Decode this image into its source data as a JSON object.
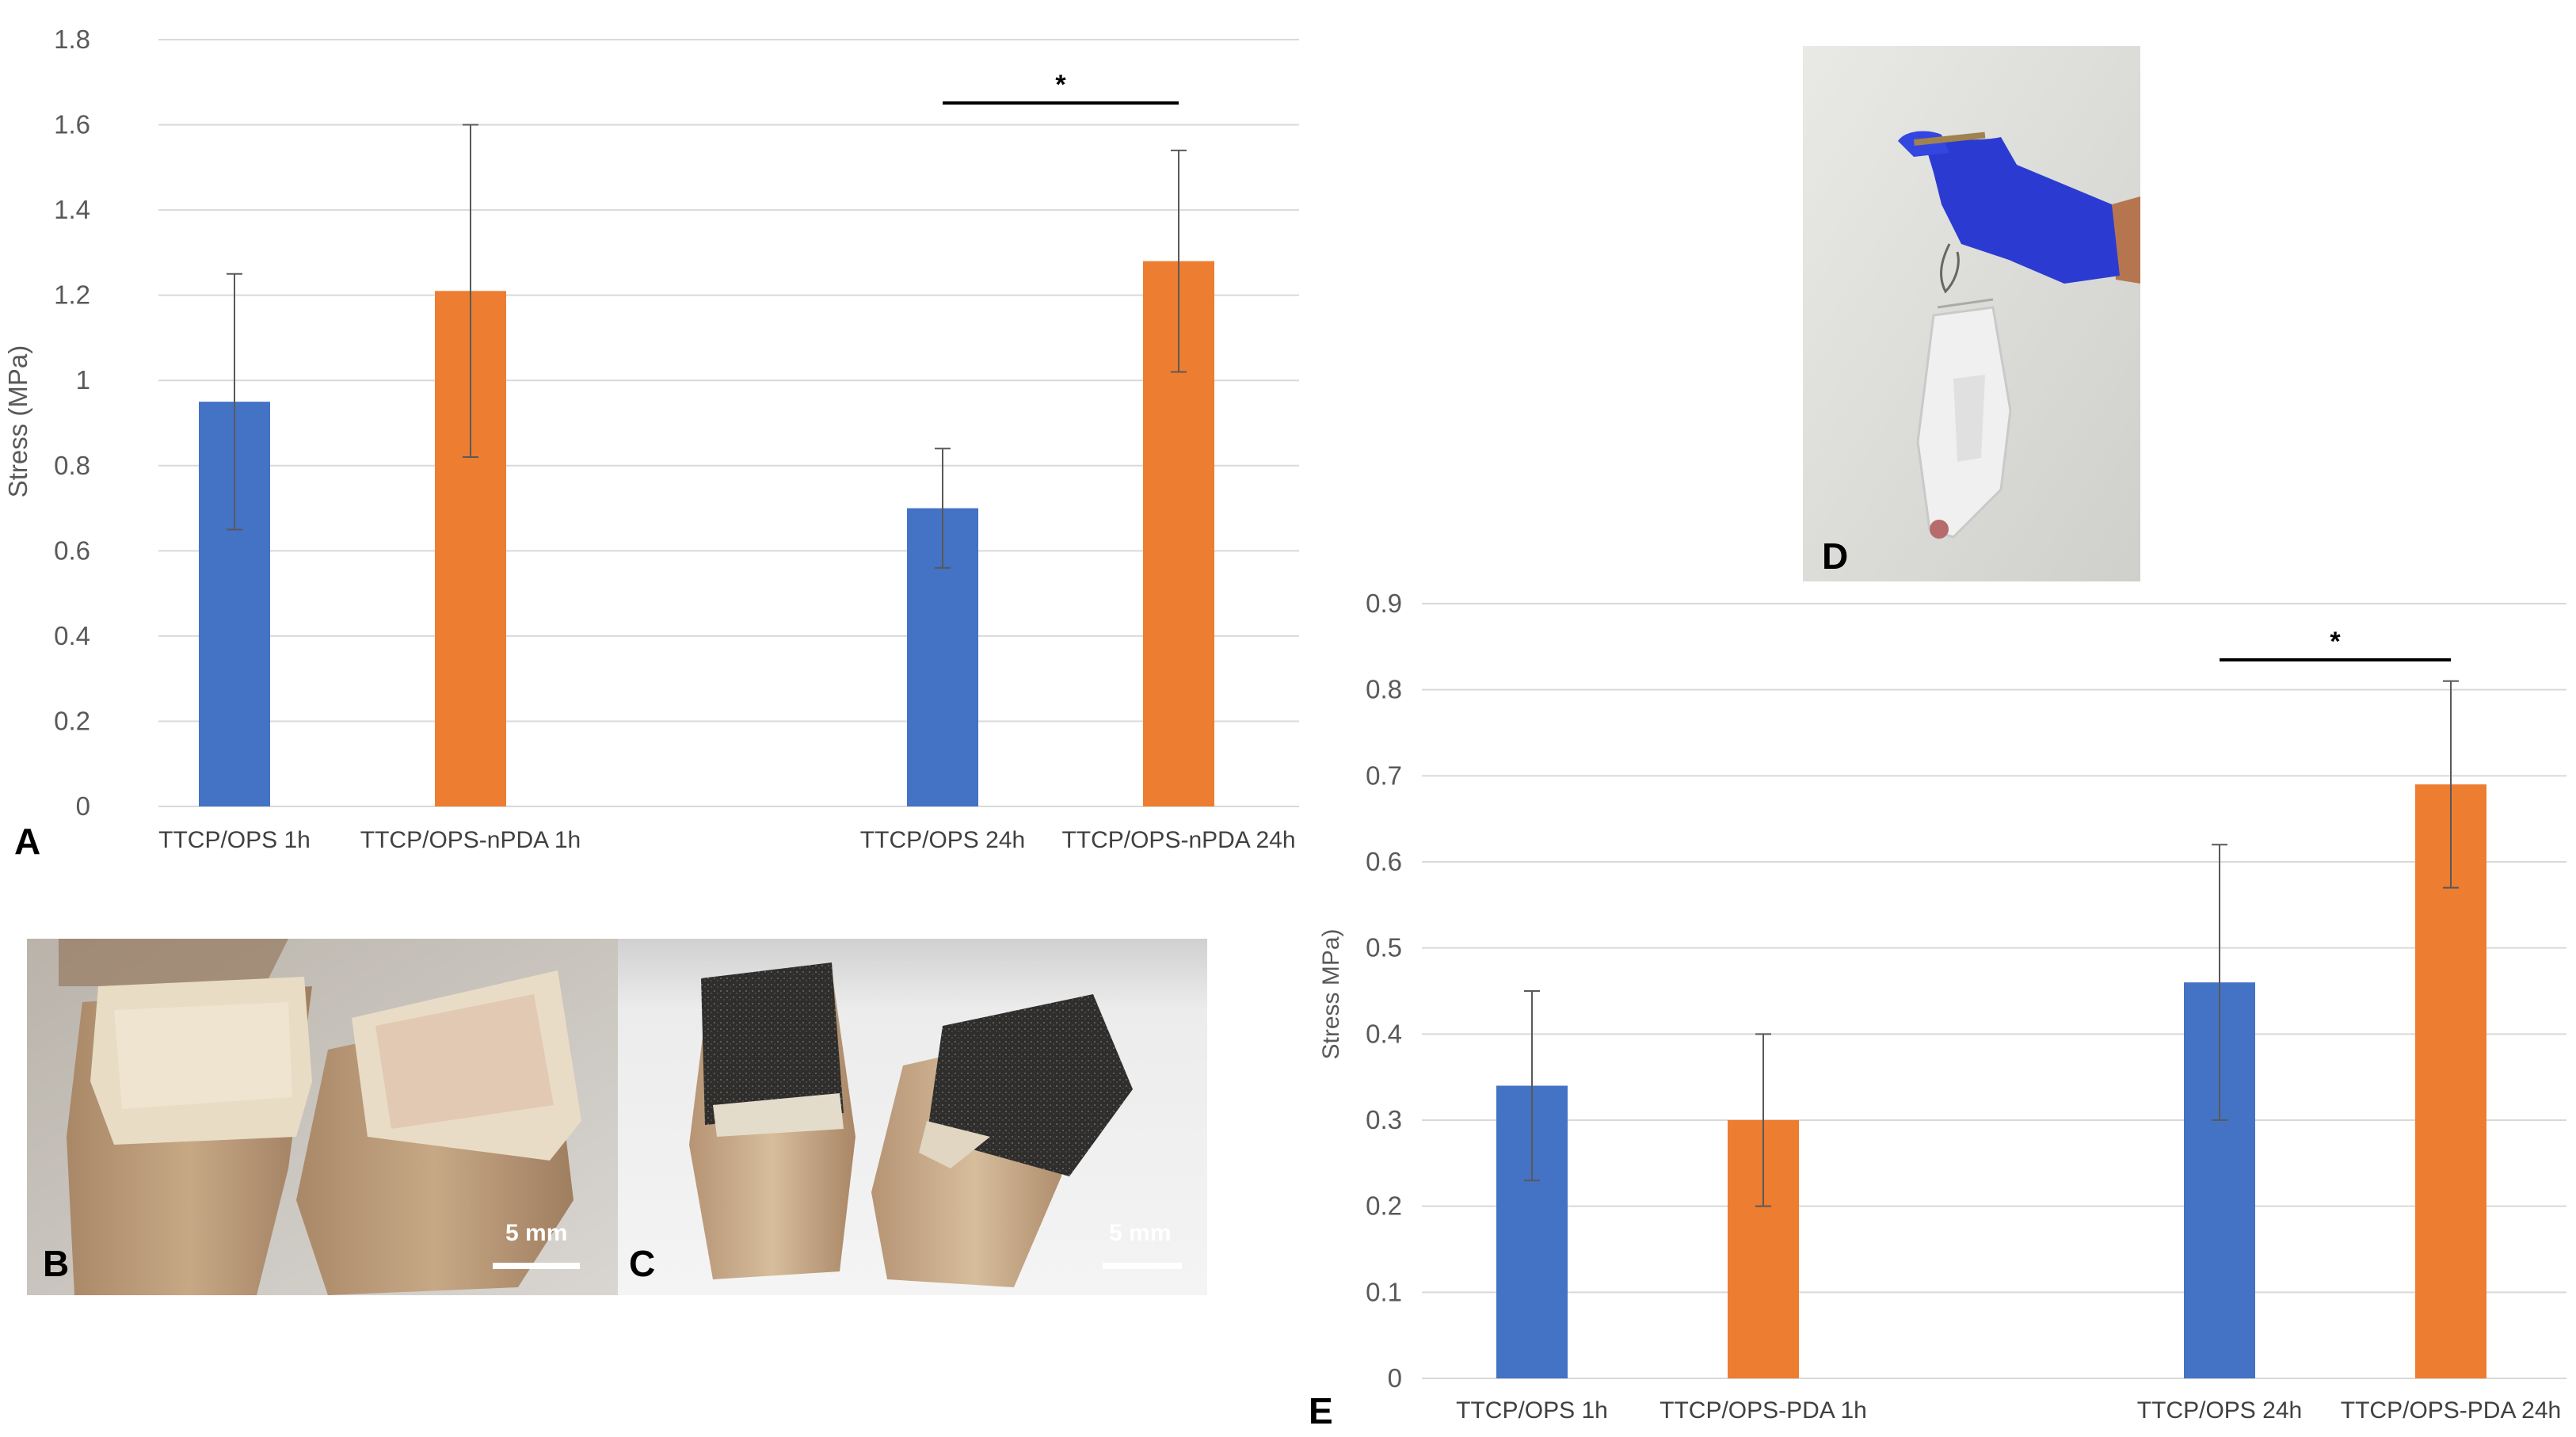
{
  "panels": {
    "a": "A",
    "b": "B",
    "c": "C",
    "d": "D",
    "e": "E"
  },
  "photos": {
    "b_scale": "5 mm",
    "c_scale": "5 mm"
  },
  "significance_marker": "*",
  "chart_data": [
    {
      "panel": "A",
      "type": "bar",
      "categories": [
        "TTCP/OPS 1h",
        "TTCP/OPS-nPDA 1h",
        "TTCP/OPS 24h",
        "TTCP/OPS-nPDA 24h"
      ],
      "values": [
        0.95,
        1.21,
        0.7,
        1.28
      ],
      "errors": [
        0.3,
        0.39,
        0.14,
        0.26
      ],
      "bar_colors": [
        "#4472C4",
        "#ED7D31",
        "#4472C4",
        "#ED7D31"
      ],
      "ylabel": "Stress (MPa)",
      "xlabel": "",
      "ylim": [
        0,
        1.8
      ],
      "yticks": [
        "0",
        "0.2",
        "0.4",
        "0.6",
        "0.8",
        "1",
        "1.2",
        "1.4",
        "1.6",
        "1.8"
      ],
      "grid": true,
      "significance": {
        "between": [
          2,
          3
        ],
        "label": "*"
      }
    },
    {
      "panel": "E",
      "type": "bar",
      "categories": [
        "TTCP/OPS 1h",
        "TTCP/OPS-PDA 1h",
        "TTCP/OPS 24h",
        "TTCP/OPS-PDA 24h"
      ],
      "values": [
        0.34,
        0.3,
        0.46,
        0.69
      ],
      "errors": [
        0.11,
        0.1,
        0.16,
        0.12
      ],
      "bar_colors": [
        "#4472C4",
        "#ED7D31",
        "#4472C4",
        "#ED7D31"
      ],
      "ylabel": "Stress MPa)",
      "xlabel": "",
      "ylim": [
        0,
        0.9
      ],
      "yticks": [
        "0",
        "0.1",
        "0.2",
        "0.3",
        "0.4",
        "0.5",
        "0.6",
        "0.7",
        "0.8",
        "0.9"
      ],
      "grid": true,
      "significance": {
        "between": [
          2,
          3
        ],
        "label": "*"
      }
    }
  ]
}
